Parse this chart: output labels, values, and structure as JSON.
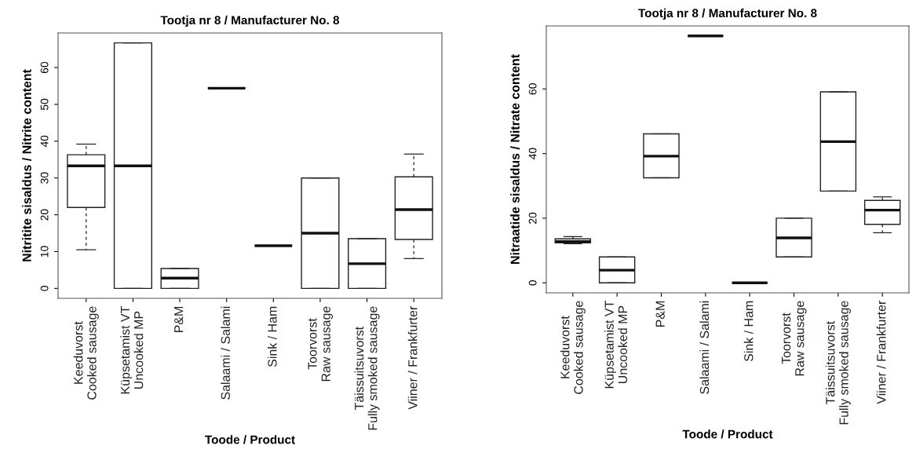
{
  "chart_data": [
    {
      "type": "box",
      "title": "Tootja nr 8 / Manufacturer No. 8",
      "xlabel": "Toode / Product",
      "ylabel": "Nitritite sisaldus / Nitrite content",
      "categories": [
        "Keeduvorst\nCooked sausage",
        "Küpsetamist VT\nUncooked MP",
        "P&M",
        "Salaami / Salami",
        "Sink / Ham",
        "Toorvorst\nRaw sausage",
        "Täissuitsuvorst\nFully smoked sausage",
        "Viiner / Frankfurter"
      ],
      "boxes": [
        {
          "low": 10.5,
          "q1": 22.0,
          "median": 33.3,
          "q3": 36.3,
          "high": 39.2
        },
        {
          "low": 0,
          "q1": 0,
          "median": 33.3,
          "q3": 66.7,
          "high": 66.7
        },
        {
          "low": 0,
          "q1": 0,
          "median": 2.8,
          "q3": 5.4,
          "high": 5.4
        },
        {
          "low": 54.4,
          "q1": 54.4,
          "median": 54.4,
          "q3": 54.4,
          "high": 54.4
        },
        {
          "low": 11.6,
          "q1": 11.6,
          "median": 11.6,
          "q3": 11.6,
          "high": 11.6
        },
        {
          "low": 0,
          "q1": 0,
          "median": 15.0,
          "q3": 30.0,
          "high": 30.0
        },
        {
          "low": 0,
          "q1": 0,
          "median": 6.7,
          "q3": 13.5,
          "high": 13.5
        },
        {
          "low": 8.1,
          "q1": 13.3,
          "median": 21.4,
          "q3": 30.3,
          "high": 36.5
        }
      ],
      "ylim": [
        -2.7,
        69.4
      ],
      "yticks": [
        0,
        10,
        20,
        30,
        40,
        50,
        60
      ],
      "grid": false,
      "legend": false
    },
    {
      "type": "box",
      "title": "Tootja nr 8 / Manufacturer No. 8",
      "xlabel": "Toode / Product",
      "ylabel": "Nitraatide sisaldus / Nitrate content",
      "categories": [
        "Keeduvorst\nCooked sausage",
        "Küpsetamist VT\nUncooked MP",
        "P&M",
        "Salaami / Salami",
        "Sink / Ham",
        "Toorvorst\nRaw sausage",
        "Täissuitsuvorst\nFully smoked sausage",
        "Viiner / Frankfurter"
      ],
      "boxes": [
        {
          "low": 12.1,
          "q1": 12.4,
          "median": 12.8,
          "q3": 13.6,
          "high": 14.3
        },
        {
          "low": 0,
          "q1": 0,
          "median": 3.9,
          "q3": 8.0,
          "high": 8.0
        },
        {
          "low": 32.5,
          "q1": 32.5,
          "median": 39.2,
          "q3": 46.1,
          "high": 46.1
        },
        {
          "low": 76.4,
          "q1": 76.4,
          "median": 76.4,
          "q3": 76.4,
          "high": 76.4
        },
        {
          "low": 0,
          "q1": 0,
          "median": 0,
          "q3": 0,
          "high": 0
        },
        {
          "low": 8.0,
          "q1": 8.0,
          "median": 13.9,
          "q3": 20.0,
          "high": 20.0
        },
        {
          "low": 28.4,
          "q1": 28.4,
          "median": 43.7,
          "q3": 59.1,
          "high": 59.1
        },
        {
          "low": 15.5,
          "q1": 18.1,
          "median": 22.5,
          "q3": 25.5,
          "high": 26.6
        }
      ],
      "ylim": [
        -3.1,
        79.5
      ],
      "yticks": [
        0,
        20,
        40,
        60
      ],
      "grid": false,
      "legend": false
    }
  ]
}
